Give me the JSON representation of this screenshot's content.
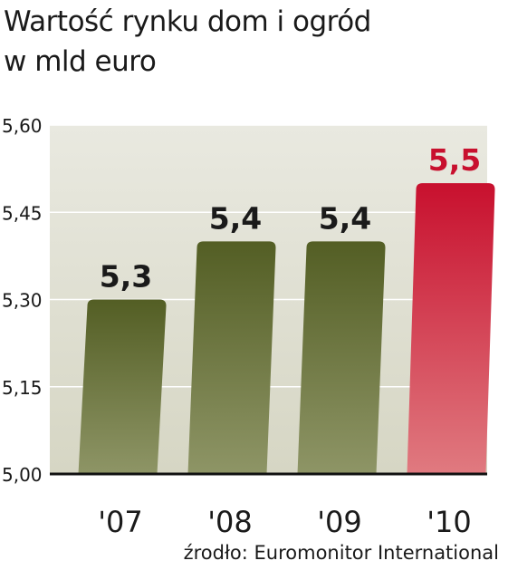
{
  "header": {
    "title_line1": "Wartość rynku dom i ogród",
    "title_line2": "w mld euro"
  },
  "source": "źrodło: Euromonitor International",
  "colors": {
    "bar_dark": "#535e24",
    "bar_light": "#8e9566",
    "highlight_dark": "#c8102e",
    "highlight_light": "#e07a80",
    "label_normal": "#1a1a1a",
    "label_highlight": "#c8102e",
    "background": "#e3e3d6"
  },
  "chart_data": {
    "type": "bar",
    "categories": [
      "'07",
      "'08",
      "'09",
      "'10"
    ],
    "values": [
      5.3,
      5.4,
      5.4,
      5.5
    ],
    "value_labels": [
      "5,3",
      "5,4",
      "5,4",
      "5,5"
    ],
    "highlight_index": 3,
    "y_ticks": [
      "5,00",
      "5,15",
      "5,30",
      "5,45",
      "5,60"
    ],
    "y_tick_values": [
      5.0,
      5.15,
      5.3,
      5.45,
      5.6
    ],
    "ylim": [
      5.0,
      5.6
    ],
    "grid": true,
    "title": "Wartość rynku dom i ogród",
    "ylabel": "w mld euro",
    "xlabel": ""
  }
}
